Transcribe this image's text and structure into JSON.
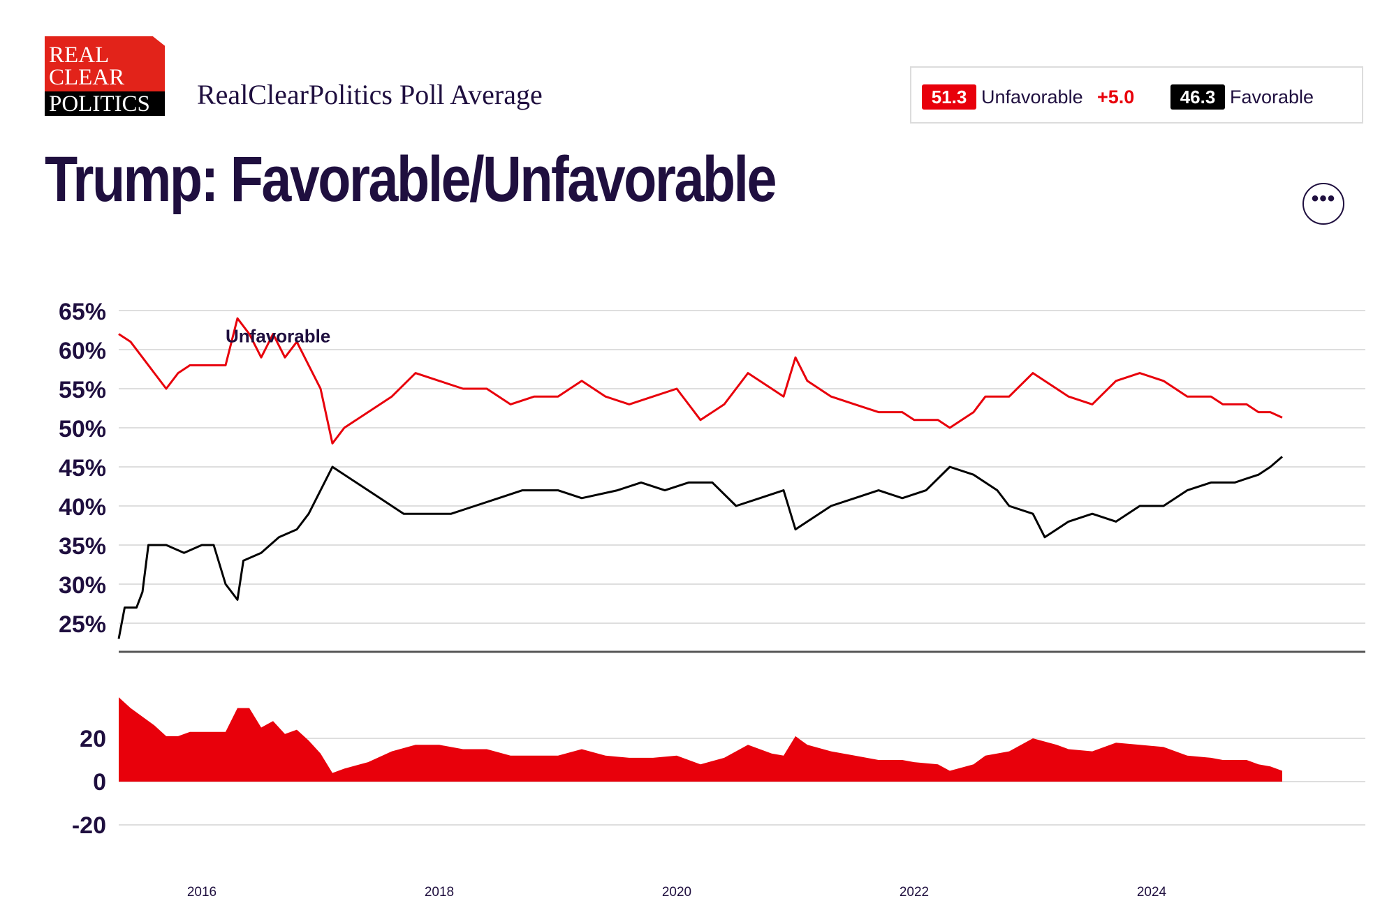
{
  "brand": {
    "logo_lines": [
      "REAL",
      "CLEAR",
      "POLITICS"
    ],
    "subtitle": "RealClearPolitics Poll Average",
    "red": "#e8000b",
    "navy": "#1f0f3f"
  },
  "title": "Trump: Favorable/Unfavorable",
  "legend": {
    "unfavorable": {
      "value": "51.3",
      "label": "Unfavorable",
      "spread": "+5.0",
      "color": "#e8000b"
    },
    "favorable": {
      "value": "46.3",
      "label": "Favorable",
      "color": "#000000"
    }
  },
  "more_button": {
    "icon": "more-horizontal-icon",
    "glyph": "•••"
  },
  "chart_data": [
    {
      "type": "line",
      "ylim": [
        22,
        66
      ],
      "y_ticks": [
        {
          "value": 65,
          "label": "65%"
        },
        {
          "value": 60,
          "label": "60%"
        },
        {
          "value": 55,
          "label": "55%"
        },
        {
          "value": 50,
          "label": "50%"
        },
        {
          "value": 45,
          "label": "45%"
        },
        {
          "value": 40,
          "label": "40%"
        },
        {
          "value": 35,
          "label": "35%"
        },
        {
          "value": 30,
          "label": "30%"
        },
        {
          "value": 25,
          "label": "25%"
        }
      ],
      "xlim": [
        2015.3,
        2025.8
      ],
      "x_ticks": [
        2016,
        2018,
        2020,
        2022,
        2024
      ],
      "annotation": {
        "text": "Unfavorable",
        "x": 2016.2,
        "y": 62.2
      },
      "series": [
        {
          "name": "Unfavorable",
          "color": "#e8000b",
          "points": [
            [
              2015.3,
              62
            ],
            [
              2015.4,
              61
            ],
            [
              2015.5,
              59
            ],
            [
              2015.6,
              57
            ],
            [
              2015.7,
              55
            ],
            [
              2015.8,
              57
            ],
            [
              2015.9,
              58
            ],
            [
              2016.0,
              58
            ],
            [
              2016.1,
              58
            ],
            [
              2016.2,
              58
            ],
            [
              2016.3,
              64
            ],
            [
              2016.4,
              62
            ],
            [
              2016.5,
              59
            ],
            [
              2016.6,
              62
            ],
            [
              2016.7,
              59
            ],
            [
              2016.8,
              61
            ],
            [
              2016.9,
              58
            ],
            [
              2017.0,
              55
            ],
            [
              2017.1,
              48
            ],
            [
              2017.2,
              50
            ],
            [
              2017.4,
              52
            ],
            [
              2017.6,
              54
            ],
            [
              2017.8,
              57
            ],
            [
              2018.0,
              56
            ],
            [
              2018.2,
              55
            ],
            [
              2018.4,
              55
            ],
            [
              2018.6,
              53
            ],
            [
              2018.8,
              54
            ],
            [
              2019.0,
              54
            ],
            [
              2019.2,
              56
            ],
            [
              2019.4,
              54
            ],
            [
              2019.6,
              53
            ],
            [
              2019.8,
              54
            ],
            [
              2020.0,
              55
            ],
            [
              2020.1,
              53
            ],
            [
              2020.2,
              51
            ],
            [
              2020.4,
              53
            ],
            [
              2020.6,
              57
            ],
            [
              2020.8,
              55
            ],
            [
              2020.9,
              54
            ],
            [
              2021.0,
              59
            ],
            [
              2021.1,
              56
            ],
            [
              2021.3,
              54
            ],
            [
              2021.5,
              53
            ],
            [
              2021.7,
              52
            ],
            [
              2021.9,
              52
            ],
            [
              2022.0,
              51
            ],
            [
              2022.2,
              51
            ],
            [
              2022.3,
              50
            ],
            [
              2022.5,
              52
            ],
            [
              2022.6,
              54
            ],
            [
              2022.8,
              54
            ],
            [
              2023.0,
              57
            ],
            [
              2023.2,
              55
            ],
            [
              2023.3,
              54
            ],
            [
              2023.5,
              53
            ],
            [
              2023.7,
              56
            ],
            [
              2023.9,
              57
            ],
            [
              2024.1,
              56
            ],
            [
              2024.3,
              54
            ],
            [
              2024.5,
              54
            ],
            [
              2024.6,
              53
            ],
            [
              2024.8,
              53
            ],
            [
              2024.9,
              52
            ],
            [
              2025.0,
              52
            ],
            [
              2025.1,
              51.3
            ]
          ]
        },
        {
          "name": "Favorable",
          "color": "#000000",
          "points": [
            [
              2015.3,
              23
            ],
            [
              2015.35,
              27
            ],
            [
              2015.45,
              27
            ],
            [
              2015.5,
              29
            ],
            [
              2015.55,
              35
            ],
            [
              2015.7,
              35
            ],
            [
              2015.85,
              34
            ],
            [
              2016.0,
              35
            ],
            [
              2016.1,
              35
            ],
            [
              2016.2,
              30
            ],
            [
              2016.3,
              28
            ],
            [
              2016.35,
              33
            ],
            [
              2016.5,
              34
            ],
            [
              2016.65,
              36
            ],
            [
              2016.8,
              37
            ],
            [
              2016.9,
              39
            ],
            [
              2017.0,
              42
            ],
            [
              2017.1,
              45
            ],
            [
              2017.3,
              43
            ],
            [
              2017.5,
              41
            ],
            [
              2017.7,
              39
            ],
            [
              2017.9,
              39
            ],
            [
              2018.1,
              39
            ],
            [
              2018.3,
              40
            ],
            [
              2018.5,
              41
            ],
            [
              2018.7,
              42
            ],
            [
              2019.0,
              42
            ],
            [
              2019.2,
              41
            ],
            [
              2019.5,
              42
            ],
            [
              2019.7,
              43
            ],
            [
              2019.9,
              42
            ],
            [
              2020.1,
              43
            ],
            [
              2020.3,
              43
            ],
            [
              2020.5,
              40
            ],
            [
              2020.7,
              41
            ],
            [
              2020.9,
              42
            ],
            [
              2021.0,
              37
            ],
            [
              2021.1,
              38
            ],
            [
              2021.3,
              40
            ],
            [
              2021.5,
              41
            ],
            [
              2021.7,
              42
            ],
            [
              2021.9,
              41
            ],
            [
              2022.1,
              42
            ],
            [
              2022.3,
              45
            ],
            [
              2022.5,
              44
            ],
            [
              2022.7,
              42
            ],
            [
              2022.8,
              40
            ],
            [
              2023.0,
              39
            ],
            [
              2023.1,
              36
            ],
            [
              2023.3,
              38
            ],
            [
              2023.5,
              39
            ],
            [
              2023.7,
              38
            ],
            [
              2023.9,
              40
            ],
            [
              2024.1,
              40
            ],
            [
              2024.3,
              42
            ],
            [
              2024.5,
              43
            ],
            [
              2024.7,
              43
            ],
            [
              2024.9,
              44
            ],
            [
              2025.0,
              45
            ],
            [
              2025.1,
              46.3
            ]
          ]
        }
      ]
    },
    {
      "type": "area",
      "name": "Spread",
      "color": "#e8000b",
      "ylim": [
        -25,
        40
      ],
      "y_ticks": [
        {
          "value": 20,
          "label": "20"
        },
        {
          "value": 0,
          "label": "0"
        },
        {
          "value": -20,
          "label": "-20"
        }
      ],
      "xlim": [
        2015.3,
        2025.8
      ],
      "x_ticks": [
        2016,
        2018,
        2020,
        2022,
        2024
      ],
      "points": [
        [
          2015.3,
          39
        ],
        [
          2015.4,
          34
        ],
        [
          2015.5,
          30
        ],
        [
          2015.6,
          26
        ],
        [
          2015.7,
          21
        ],
        [
          2015.8,
          21
        ],
        [
          2015.9,
          23
        ],
        [
          2016.0,
          23
        ],
        [
          2016.1,
          23
        ],
        [
          2016.2,
          23
        ],
        [
          2016.3,
          34
        ],
        [
          2016.4,
          34
        ],
        [
          2016.5,
          25
        ],
        [
          2016.6,
          28
        ],
        [
          2016.7,
          22
        ],
        [
          2016.8,
          24
        ],
        [
          2016.9,
          19
        ],
        [
          2017.0,
          13
        ],
        [
          2017.1,
          4
        ],
        [
          2017.2,
          6
        ],
        [
          2017.4,
          9
        ],
        [
          2017.6,
          14
        ],
        [
          2017.8,
          17
        ],
        [
          2018.0,
          17
        ],
        [
          2018.2,
          15
        ],
        [
          2018.4,
          15
        ],
        [
          2018.6,
          12
        ],
        [
          2018.8,
          12
        ],
        [
          2019.0,
          12
        ],
        [
          2019.2,
          15
        ],
        [
          2019.4,
          12
        ],
        [
          2019.6,
          11
        ],
        [
          2019.8,
          11
        ],
        [
          2020.0,
          12
        ],
        [
          2020.1,
          10
        ],
        [
          2020.2,
          8
        ],
        [
          2020.4,
          11
        ],
        [
          2020.6,
          17
        ],
        [
          2020.8,
          13
        ],
        [
          2020.9,
          12
        ],
        [
          2021.0,
          21
        ],
        [
          2021.1,
          17
        ],
        [
          2021.3,
          14
        ],
        [
          2021.5,
          12
        ],
        [
          2021.7,
          10
        ],
        [
          2021.9,
          10
        ],
        [
          2022.0,
          9
        ],
        [
          2022.2,
          8
        ],
        [
          2022.3,
          5
        ],
        [
          2022.5,
          8
        ],
        [
          2022.6,
          12
        ],
        [
          2022.8,
          14
        ],
        [
          2023.0,
          20
        ],
        [
          2023.2,
          17
        ],
        [
          2023.3,
          15
        ],
        [
          2023.5,
          14
        ],
        [
          2023.7,
          18
        ],
        [
          2023.9,
          17
        ],
        [
          2024.1,
          16
        ],
        [
          2024.3,
          12
        ],
        [
          2024.5,
          11
        ],
        [
          2024.6,
          10
        ],
        [
          2024.8,
          10
        ],
        [
          2024.9,
          8
        ],
        [
          2025.0,
          7
        ],
        [
          2025.1,
          5
        ]
      ]
    }
  ]
}
